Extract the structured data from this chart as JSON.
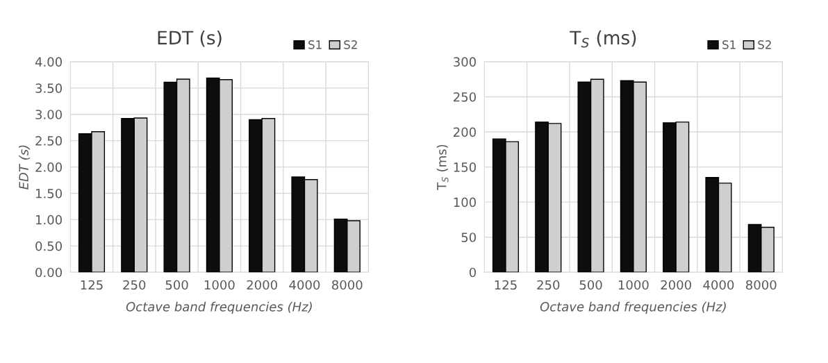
{
  "chart_data": [
    {
      "type": "bar",
      "title": "EDT (s)",
      "xlabel": "Octave band frequencies (Hz)",
      "ylabel": "EDT (s)",
      "categories": [
        "125",
        "250",
        "500",
        "1000",
        "2000",
        "4000",
        "8000"
      ],
      "series": [
        {
          "name": "S1",
          "color": "#0d0d0d",
          "values": [
            2.63,
            2.92,
            3.61,
            3.69,
            2.9,
            1.81,
            1.01
          ]
        },
        {
          "name": "S2",
          "color": "#d0cece",
          "values": [
            2.67,
            2.93,
            3.67,
            3.66,
            2.92,
            1.76,
            0.98
          ]
        }
      ],
      "ylim": [
        0,
        4
      ],
      "yticks": [
        {
          "value": 0,
          "label": "0.00"
        },
        {
          "value": 0.5,
          "label": "0.50"
        },
        {
          "value": 1,
          "label": "1.00"
        },
        {
          "value": 1.5,
          "label": "1.50"
        },
        {
          "value": 2,
          "label": "2.00"
        },
        {
          "value": 2.5,
          "label": "2.50"
        },
        {
          "value": 3,
          "label": "3.00"
        },
        {
          "value": 3.5,
          "label": "3.50"
        },
        {
          "value": 4,
          "label": "4.00"
        }
      ],
      "grid": true,
      "legend": "top right"
    },
    {
      "type": "bar",
      "title": "T$_{S}$ (ms)",
      "xlabel": "Octave band frequencies (Hz)",
      "ylabel": "T$_{S}$ (ms)",
      "categories": [
        "125",
        "250",
        "500",
        "1000",
        "2000",
        "4000",
        "8000"
      ],
      "series": [
        {
          "name": "S1",
          "color": "#0d0d0d",
          "values": [
            190,
            214,
            271,
            273,
            213,
            135,
            68
          ]
        },
        {
          "name": "S2",
          "color": "#d0cece",
          "values": [
            186,
            212,
            275,
            271,
            214,
            127,
            64
          ]
        }
      ],
      "ylim": [
        0,
        300
      ],
      "yticks": [
        0,
        50,
        100,
        150,
        200,
        250,
        300
      ],
      "grid": true,
      "legend": "top right"
    }
  ]
}
